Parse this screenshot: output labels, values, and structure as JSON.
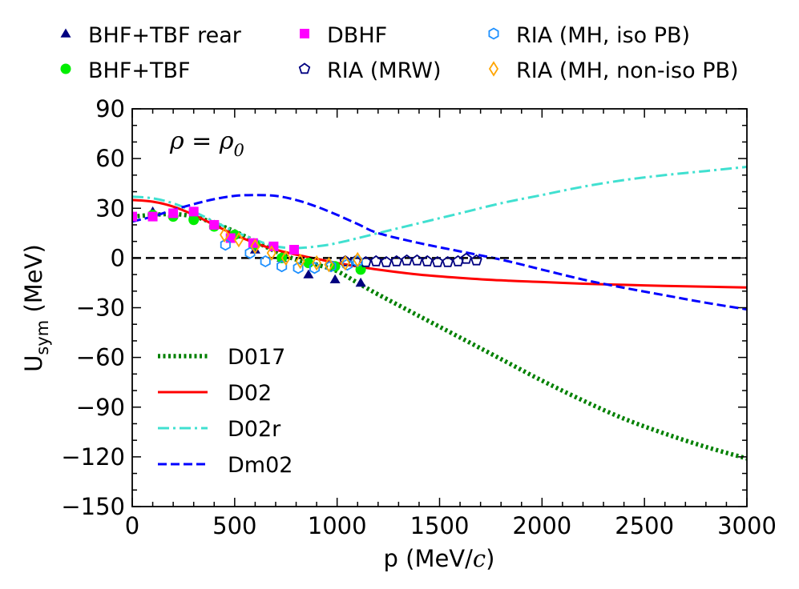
{
  "chart_data": {
    "type": "line",
    "annotation": {
      "text": "ρ = ρ",
      "subscript": "0"
    },
    "xlabel": {
      "main": "p (MeV/",
      "italic": "c",
      "close": ")"
    },
    "ylabel": {
      "main": "U",
      "subscript": "sym",
      "rest": " (MeV)"
    },
    "xlim": [
      0,
      3000
    ],
    "ylim": [
      -150,
      90
    ],
    "xticks": [
      {
        "v": 0,
        "label": "0"
      },
      {
        "v": 500,
        "label": "500"
      },
      {
        "v": 1000,
        "label": "1000"
      },
      {
        "v": 1500,
        "label": "1500"
      },
      {
        "v": 2000,
        "label": "2000"
      },
      {
        "v": 2500,
        "label": "2500"
      },
      {
        "v": 3000,
        "label": "3000"
      }
    ],
    "yticks": [
      {
        "v": -150,
        "label": "−150"
      },
      {
        "v": -120,
        "label": "−120"
      },
      {
        "v": -90,
        "label": "−90"
      },
      {
        "v": -60,
        "label": "−60"
      },
      {
        "v": -30,
        "label": "−30"
      },
      {
        "v": 0,
        "label": "0"
      },
      {
        "v": 30,
        "label": "30"
      },
      {
        "v": 60,
        "label": "60"
      },
      {
        "v": 90,
        "label": "90"
      }
    ],
    "reference_line": {
      "y": 0,
      "color": "#000000",
      "dash": "dashed"
    },
    "curves": [
      {
        "name": "D017",
        "color": "#008000",
        "style": "dotted",
        "x": [
          0,
          100,
          200,
          300,
          400,
          500,
          600,
          700,
          800,
          900,
          1000,
          1100,
          1200,
          1400,
          1600,
          1800,
          2000,
          2200,
          2400,
          2600,
          2800,
          3000
        ],
        "y": [
          25,
          26,
          26.5,
          25,
          21,
          16,
          10,
          4,
          -1,
          -4,
          -8,
          -15,
          -22,
          -35,
          -48,
          -61,
          -74,
          -86,
          -97,
          -106,
          -114,
          -121
        ]
      },
      {
        "name": "D02",
        "color": "#ff0000",
        "style": "solid",
        "x": [
          0,
          100,
          200,
          300,
          400,
          500,
          600,
          700,
          800,
          900,
          1000,
          1200,
          1400,
          1600,
          1800,
          2000,
          2200,
          2400,
          2600,
          2800,
          3000
        ],
        "y": [
          35,
          34,
          31,
          26,
          20,
          14,
          9,
          5,
          2,
          -0.5,
          -3,
          -7,
          -10,
          -12,
          -13.5,
          -14.5,
          -15.5,
          -16.2,
          -16.8,
          -17.3,
          -17.8
        ]
      },
      {
        "name": "D02r",
        "color": "#40e0d0",
        "style": "dashdot",
        "x": [
          0,
          100,
          200,
          300,
          400,
          500,
          600,
          700,
          800,
          900,
          1000,
          1200,
          1400,
          1600,
          1800,
          2000,
          2200,
          2400,
          2600,
          2800,
          3000
        ],
        "y": [
          37,
          36,
          33,
          28,
          22,
          16,
          11,
          7,
          6,
          7,
          9,
          15,
          21,
          27,
          33,
          38,
          43,
          47,
          50,
          52.5,
          55
        ]
      },
      {
        "name": "Dm02",
        "color": "#0000ff",
        "style": "dashed",
        "x": [
          0,
          100,
          200,
          300,
          400,
          500,
          600,
          700,
          800,
          900,
          1000,
          1100,
          1200,
          1400,
          1600,
          1800,
          2000,
          2200,
          2400,
          2600,
          2800,
          3000
        ],
        "y": [
          22,
          25,
          29,
          32.5,
          35.5,
          37.5,
          38,
          37.5,
          35,
          31,
          26,
          20.5,
          15,
          9,
          4,
          -1,
          -7,
          -13,
          -18,
          -22.5,
          -27,
          -31
        ]
      }
    ],
    "markers": [
      {
        "name": "BHF+TBF rear",
        "shape": "triangle",
        "color": "#000080",
        "filled": true,
        "x": [
          100,
          200,
          300,
          400,
          500,
          600,
          730,
          860,
          990,
          1115
        ],
        "y": [
          28,
          27,
          26,
          20,
          14,
          5,
          0,
          -10,
          -13,
          -15
        ]
      },
      {
        "name": "BHF+TBF",
        "shape": "circle",
        "color": "#00ee00",
        "filled": true,
        "x": [
          100,
          200,
          300,
          400,
          500,
          600,
          730,
          860,
          990,
          1115
        ],
        "y": [
          26,
          25,
          23,
          19,
          14,
          8,
          0,
          -3,
          -5,
          -7
        ]
      },
      {
        "name": "DBHF",
        "shape": "square",
        "color": "#ff00ff",
        "filled": true,
        "x": [
          0,
          100,
          200,
          300,
          400,
          480,
          590,
          690,
          790
        ],
        "y": [
          25,
          25,
          27,
          28,
          20,
          12,
          9,
          7,
          5
        ]
      },
      {
        "name": "RIA (MRW)",
        "shape": "pentagon",
        "color": "#000080",
        "filled": false,
        "x": [
          1040,
          1090,
          1140,
          1190,
          1240,
          1290,
          1340,
          1390,
          1440,
          1490,
          1540,
          1590,
          1630,
          1680
        ],
        "y": [
          -2,
          -2,
          -2.5,
          -2,
          -2.5,
          -2,
          -1.5,
          -1.5,
          -2,
          -2.5,
          -2.5,
          -2,
          -0.5,
          -1.5
        ]
      },
      {
        "name": "RIA (MH, iso PB)",
        "shape": "hexagon",
        "color": "#1e90ff",
        "filled": false,
        "x": [
          455,
          575,
          650,
          730,
          810,
          890,
          970,
          1050,
          1100
        ],
        "y": [
          8,
          3,
          -2,
          -5,
          -6,
          -6,
          -5,
          -4,
          -2
        ]
      },
      {
        "name": "RIA (MH, non-iso PB)",
        "shape": "diamond",
        "color": "#ffa500",
        "filled": false,
        "x": [
          450,
          520,
          600,
          680,
          750,
          820,
          900,
          960,
          1040,
          1100
        ],
        "y": [
          14,
          11,
          7,
          3,
          0,
          -2,
          -3,
          -4,
          -3,
          -1
        ]
      }
    ],
    "marker_legend": [
      "BHF+TBF rear",
      "DBHF",
      "RIA (MH, iso PB)",
      "BHF+TBF",
      "RIA (MRW)",
      "RIA (MH, non-iso PB)"
    ],
    "line_legend": [
      "D017",
      "D02",
      "D02r",
      "Dm02"
    ],
    "legend_placement": {
      "markers": "top, outside",
      "lines": "lower-left"
    }
  }
}
